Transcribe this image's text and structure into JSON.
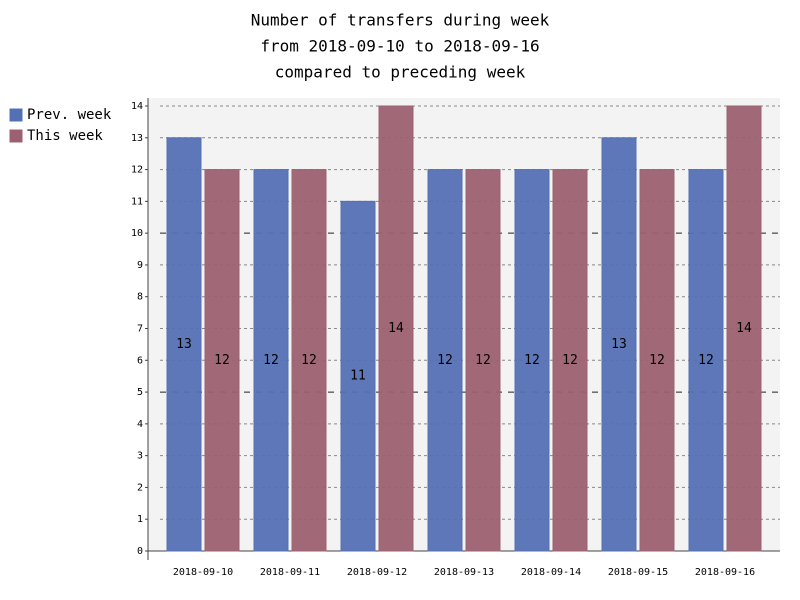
{
  "chart_data": {
    "type": "bar",
    "title": [
      "Number of transfers during week",
      "from 2018-09-10 to 2018-09-16",
      "compared to preceding week"
    ],
    "categories": [
      "2018-09-10",
      "2018-09-11",
      "2018-09-12",
      "2018-09-13",
      "2018-09-14",
      "2018-09-15",
      "2018-09-16"
    ],
    "series": [
      {
        "name": "Prev. week",
        "color": "#5470b4",
        "values": [
          13,
          12,
          11,
          12,
          12,
          13,
          12
        ]
      },
      {
        "name": "This week",
        "color": "#9c6170",
        "values": [
          12,
          12,
          14,
          12,
          12,
          12,
          14
        ]
      }
    ],
    "ylim": [
      0,
      14
    ],
    "yticks": [
      0,
      1,
      2,
      3,
      4,
      5,
      6,
      7,
      8,
      9,
      10,
      11,
      12,
      13,
      14
    ],
    "grid": true,
    "legend": "left"
  }
}
